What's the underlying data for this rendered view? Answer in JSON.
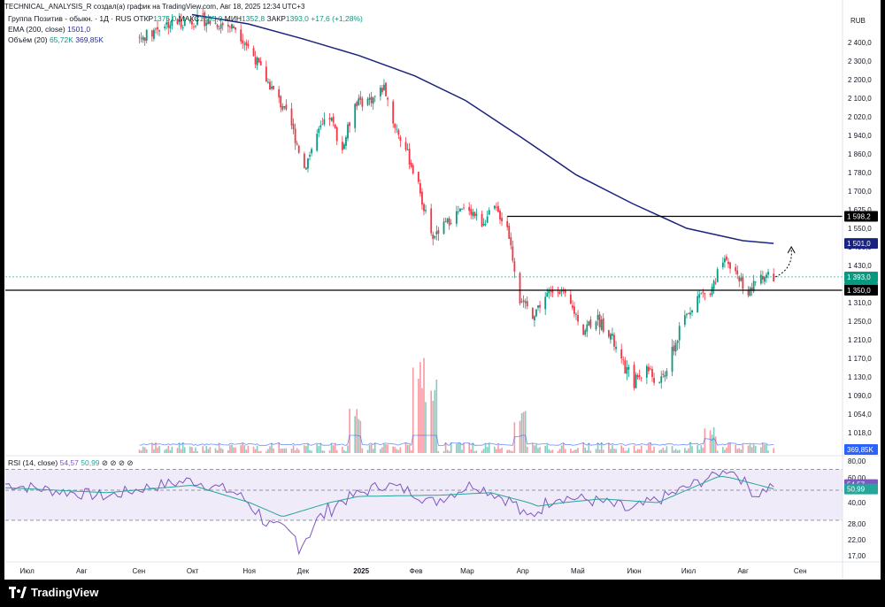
{
  "header": {
    "attribution": "TECHNICAL_ANALYSIS_R создал(а) график на TradingView.com, Авг 18, 2025 12:34 UTC+3",
    "instrument": "Группа Позитив - обыкн. · 1Д · RUS",
    "ohlc": {
      "open_label": "ОТКР",
      "open": "1375,0",
      "high_label": "МАКС",
      "high": "1395,0",
      "low_label": "МИН",
      "low": "1352,8",
      "close_label": "ЗАКР",
      "close": "1393,0",
      "change": "+17,6 (+1,28%)"
    },
    "ema_label": "EMA (200, close)",
    "ema_value": "1501,0",
    "volume_label": "Объём (20)",
    "volume_value": "65,72K",
    "volume_ma": "369,85K",
    "rsi_label": "RSI (14, close)",
    "rsi_value": "54,57",
    "rsi_ma": "50,99",
    "currency": "RUB"
  },
  "chart_data": {
    "type": "candlestick",
    "price_axis_ticks": [
      "2 400,0",
      "2 300,0",
      "2 200,0",
      "2 100,0",
      "2 020,0",
      "1 940,0",
      "1 860,0",
      "1 780,0",
      "1 700,0",
      "1 625,0",
      "1 550,0",
      "1 490,0",
      "1 430,0",
      "1 370,0",
      "1 310,0",
      "1 250,0",
      "1 210,0",
      "1 170,0",
      "1 130,0",
      "1 090,0",
      "1 054,0",
      "1 018,0"
    ],
    "price_tick_values": [
      2400,
      2300,
      2200,
      2100,
      2020,
      1940,
      1860,
      1780,
      1700,
      1625,
      1550,
      1490,
      1430,
      1370,
      1310,
      1250,
      1210,
      1170,
      1130,
      1090,
      1054,
      1018
    ],
    "rsi_axis_ticks": [
      "80,00",
      "60,00",
      "40,00",
      "28,00",
      "22,00",
      "17,00"
    ],
    "rsi_tick_values": [
      80,
      60,
      40,
      28,
      22,
      17
    ],
    "rsi_bands": [
      30,
      70
    ],
    "time_axis": [
      "Июл",
      "Авг",
      "Сен",
      "Окт",
      "Ноя",
      "Дек",
      "2025",
      "Фев",
      "Мар",
      "Апр",
      "Май",
      "Июн",
      "Июл",
      "Авг",
      "Сен"
    ],
    "horizontal_levels": [
      {
        "value": 1598.2,
        "label": "1 598,2",
        "start": "2025-03-24"
      },
      {
        "value": 1350.0,
        "label": "1 350,0"
      }
    ],
    "price_labels": {
      "ema": "1 501,0",
      "last": "1 393,0",
      "countdown": "11:15:53",
      "volume_ma": "369,85K"
    },
    "price_series": [
      {
        "date": "2024-09-02",
        "close": 2420
      },
      {
        "date": "2024-09-16",
        "close": 2500
      },
      {
        "date": "2024-10-07",
        "close": 2520
      },
      {
        "date": "2024-10-25",
        "close": 2480
      },
      {
        "date": "2024-11-04",
        "close": 2330
      },
      {
        "date": "2024-11-11",
        "close": 2200
      },
      {
        "date": "2024-11-18",
        "close": 2090
      },
      {
        "date": "2024-11-25",
        "close": 1980
      },
      {
        "date": "2024-12-02",
        "close": 1800
      },
      {
        "date": "2024-12-09",
        "close": 1940
      },
      {
        "date": "2024-12-16",
        "close": 2020
      },
      {
        "date": "2024-12-23",
        "close": 1880
      },
      {
        "date": "2024-12-30",
        "close": 2080
      },
      {
        "date": "2025-01-09",
        "close": 2100
      },
      {
        "date": "2025-01-15",
        "close": 2160
      },
      {
        "date": "2025-01-20",
        "close": 2000
      },
      {
        "date": "2025-01-27",
        "close": 1880
      },
      {
        "date": "2025-02-03",
        "close": 1720
      },
      {
        "date": "2025-02-10",
        "close": 1520
      },
      {
        "date": "2025-02-17",
        "close": 1560
      },
      {
        "date": "2025-02-24",
        "close": 1610
      },
      {
        "date": "2025-03-03",
        "close": 1630
      },
      {
        "date": "2025-03-10",
        "close": 1570
      },
      {
        "date": "2025-03-17",
        "close": 1630
      },
      {
        "date": "2025-03-24",
        "close": 1560
      },
      {
        "date": "2025-03-31",
        "close": 1320
      },
      {
        "date": "2025-04-07",
        "close": 1270
      },
      {
        "date": "2025-04-14",
        "close": 1330
      },
      {
        "date": "2025-04-21",
        "close": 1360
      },
      {
        "date": "2025-04-28",
        "close": 1300
      },
      {
        "date": "2025-05-05",
        "close": 1230
      },
      {
        "date": "2025-05-12",
        "close": 1260
      },
      {
        "date": "2025-05-19",
        "close": 1230
      },
      {
        "date": "2025-05-26",
        "close": 1160
      },
      {
        "date": "2025-06-02",
        "close": 1120
      },
      {
        "date": "2025-06-09",
        "close": 1150
      },
      {
        "date": "2025-06-16",
        "close": 1110
      },
      {
        "date": "2025-06-23",
        "close": 1180
      },
      {
        "date": "2025-06-30",
        "close": 1260
      },
      {
        "date": "2025-07-07",
        "close": 1330
      },
      {
        "date": "2025-07-14",
        "close": 1350
      },
      {
        "date": "2025-07-21",
        "close": 1440
      },
      {
        "date": "2025-07-28",
        "close": 1410
      },
      {
        "date": "2025-08-04",
        "close": 1340
      },
      {
        "date": "2025-08-11",
        "close": 1400
      },
      {
        "date": "2025-08-18",
        "close": 1393
      }
    ],
    "ema_series": [
      {
        "date": "2024-10-01",
        "value": 2550
      },
      {
        "date": "2024-11-01",
        "value": 2500
      },
      {
        "date": "2024-12-01",
        "value": 2420
      },
      {
        "date": "2025-01-01",
        "value": 2330
      },
      {
        "date": "2025-02-01",
        "value": 2220
      },
      {
        "date": "2025-03-01",
        "value": 2090
      },
      {
        "date": "2025-04-01",
        "value": 1930
      },
      {
        "date": "2025-05-01",
        "value": 1770
      },
      {
        "date": "2025-06-01",
        "value": 1650
      },
      {
        "date": "2025-07-01",
        "value": 1550
      },
      {
        "date": "2025-08-01",
        "value": 1510
      },
      {
        "date": "2025-08-18",
        "value": 1501
      }
    ],
    "rsi_series": [
      {
        "date": "2024-06-20",
        "value": 55
      },
      {
        "date": "2024-07-15",
        "value": 50
      },
      {
        "date": "2024-08-15",
        "value": 45
      },
      {
        "date": "2024-09-05",
        "value": 52
      },
      {
        "date": "2024-10-01",
        "value": 58
      },
      {
        "date": "2024-10-25",
        "value": 48
      },
      {
        "date": "2024-11-15",
        "value": 25
      },
      {
        "date": "2024-12-01",
        "value": 22
      },
      {
        "date": "2024-12-20",
        "value": 40
      },
      {
        "date": "2025-01-15",
        "value": 55
      },
      {
        "date": "2025-02-01",
        "value": 48
      },
      {
        "date": "2025-02-10",
        "value": 40
      },
      {
        "date": "2025-03-05",
        "value": 55
      },
      {
        "date": "2025-03-28",
        "value": 40
      },
      {
        "date": "2025-04-03",
        "value": 30
      },
      {
        "date": "2025-04-20",
        "value": 45
      },
      {
        "date": "2025-05-10",
        "value": 42
      },
      {
        "date": "2025-06-01",
        "value": 35
      },
      {
        "date": "2025-06-20",
        "value": 45
      },
      {
        "date": "2025-07-10",
        "value": 58
      },
      {
        "date": "2025-07-25",
        "value": 70
      },
      {
        "date": "2025-08-08",
        "value": 46
      },
      {
        "date": "2025-08-18",
        "value": 54.57
      }
    ],
    "rsi_ma_series": [
      {
        "date": "2024-06-20",
        "value": 52
      },
      {
        "date": "2024-08-15",
        "value": 48
      },
      {
        "date": "2024-10-01",
        "value": 54
      },
      {
        "date": "2024-11-20",
        "value": 32
      },
      {
        "date": "2025-01-01",
        "value": 45
      },
      {
        "date": "2025-02-15",
        "value": 46
      },
      {
        "date": "2025-03-15",
        "value": 48
      },
      {
        "date": "2025-04-10",
        "value": 38
      },
      {
        "date": "2025-05-15",
        "value": 43
      },
      {
        "date": "2025-06-15",
        "value": 40
      },
      {
        "date": "2025-07-20",
        "value": 62
      },
      {
        "date": "2025-08-05",
        "value": 56
      },
      {
        "date": "2025-08-18",
        "value": 50.99
      }
    ],
    "volume_highlights": [
      {
        "date": "2025-02-03",
        "value": 1.0
      },
      {
        "date": "2025-02-10",
        "value": 0.75
      },
      {
        "date": "2024-12-30",
        "value": 0.45
      },
      {
        "date": "2025-03-31",
        "value": 0.45
      },
      {
        "date": "2025-07-14",
        "value": 0.25
      }
    ],
    "colors": {
      "up": "#089981",
      "down": "#f23645",
      "ema": "#1a237e",
      "rsi": "#7e57c2",
      "rsi_ma": "#26a69a",
      "level": "#000000"
    }
  },
  "brand": "TradingView"
}
